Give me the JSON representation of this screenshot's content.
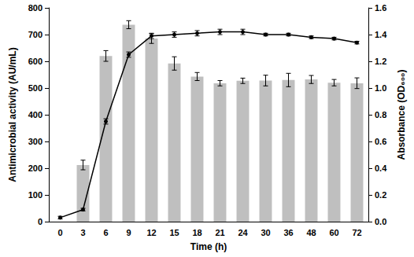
{
  "chart_data": {
    "type": "bar",
    "x_label": "Time (h)",
    "y_label": "Antimicrobial activity (AU/mL)",
    "y2_label": "Absorbance (OD₆₀₀)",
    "categories": [
      "0",
      "3",
      "6",
      "9",
      "12",
      "15",
      "18",
      "21",
      "24",
      "30",
      "36",
      "48",
      "60",
      "72"
    ],
    "series": [
      {
        "type": "bar",
        "color": "#bfbfbf",
        "values": [
          0,
          212,
          620,
          737,
          685,
          592,
          543,
          518,
          527,
          528,
          530,
          532,
          520,
          518
        ],
        "errors": [
          0,
          18,
          20,
          15,
          18,
          25,
          15,
          10,
          10,
          20,
          25,
          15,
          12,
          20
        ]
      },
      {
        "type": "line",
        "axis": "y2",
        "color": "#000000",
        "marker": "circle",
        "line_style": "solid",
        "values": [
          0.03,
          0.09,
          0.75,
          1.25,
          1.39,
          1.4,
          1.41,
          1.42,
          1.42,
          1.4,
          1.4,
          1.38,
          1.37,
          1.34
        ],
        "errors": [
          0.01,
          0.01,
          0.02,
          0.02,
          0.02,
          0.02,
          0.02,
          0.02,
          0.02,
          0.01,
          0.01,
          0.01,
          0.01,
          0.01
        ]
      }
    ],
    "ylim": [
      0,
      800
    ],
    "yticks": [
      0,
      100,
      200,
      300,
      400,
      500,
      600,
      700,
      800
    ],
    "y2lim": [
      0,
      1.6
    ],
    "y2ticks": [
      {
        "value": 0,
        "label": "0.0"
      },
      0.2,
      0.4,
      0.6,
      0.8,
      {
        "value": 1,
        "label": "1.0"
      },
      1.2,
      1.4,
      1.6
    ],
    "grid": false
  }
}
